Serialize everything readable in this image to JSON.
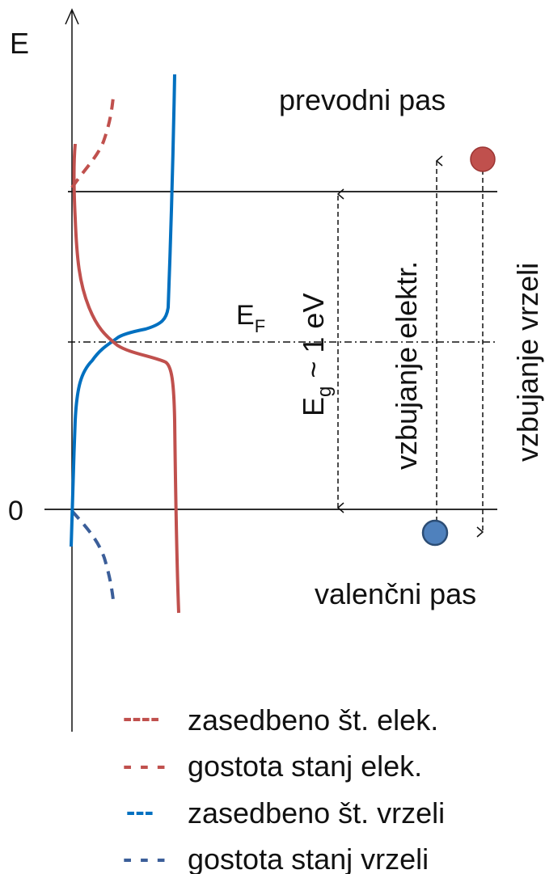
{
  "axis": {
    "y_label": "E",
    "zero_label": "0"
  },
  "bands": {
    "conduction_label": "prevodni pas",
    "valence_label": "valenčni pas",
    "fermi_label": "E",
    "fermi_sub": "F"
  },
  "gap": {
    "prefix": "E",
    "sub": "g",
    "value": " ~ 1 eV"
  },
  "arrows": {
    "electron_excitation": "vzbujanje elektr.",
    "hole_excitation": "vzbujanje vrzeli"
  },
  "particles": {
    "electron_color": "#c0504d",
    "hole_color": "#4f81bd"
  },
  "legend": [
    {
      "swatch": "----",
      "label": "zasedbeno št. elek.",
      "color": "#c0504d"
    },
    {
      "swatch": "- - -",
      "label": "gostota stanj elek.",
      "color": "#c0504d"
    },
    {
      "swatch": "---",
      "label": "zasedbeno št. vrzeli",
      "color": "#0070c0"
    },
    {
      "swatch": "- - -",
      "label": "gostota stanj vrzeli",
      "color": "#3b5e99"
    }
  ]
}
